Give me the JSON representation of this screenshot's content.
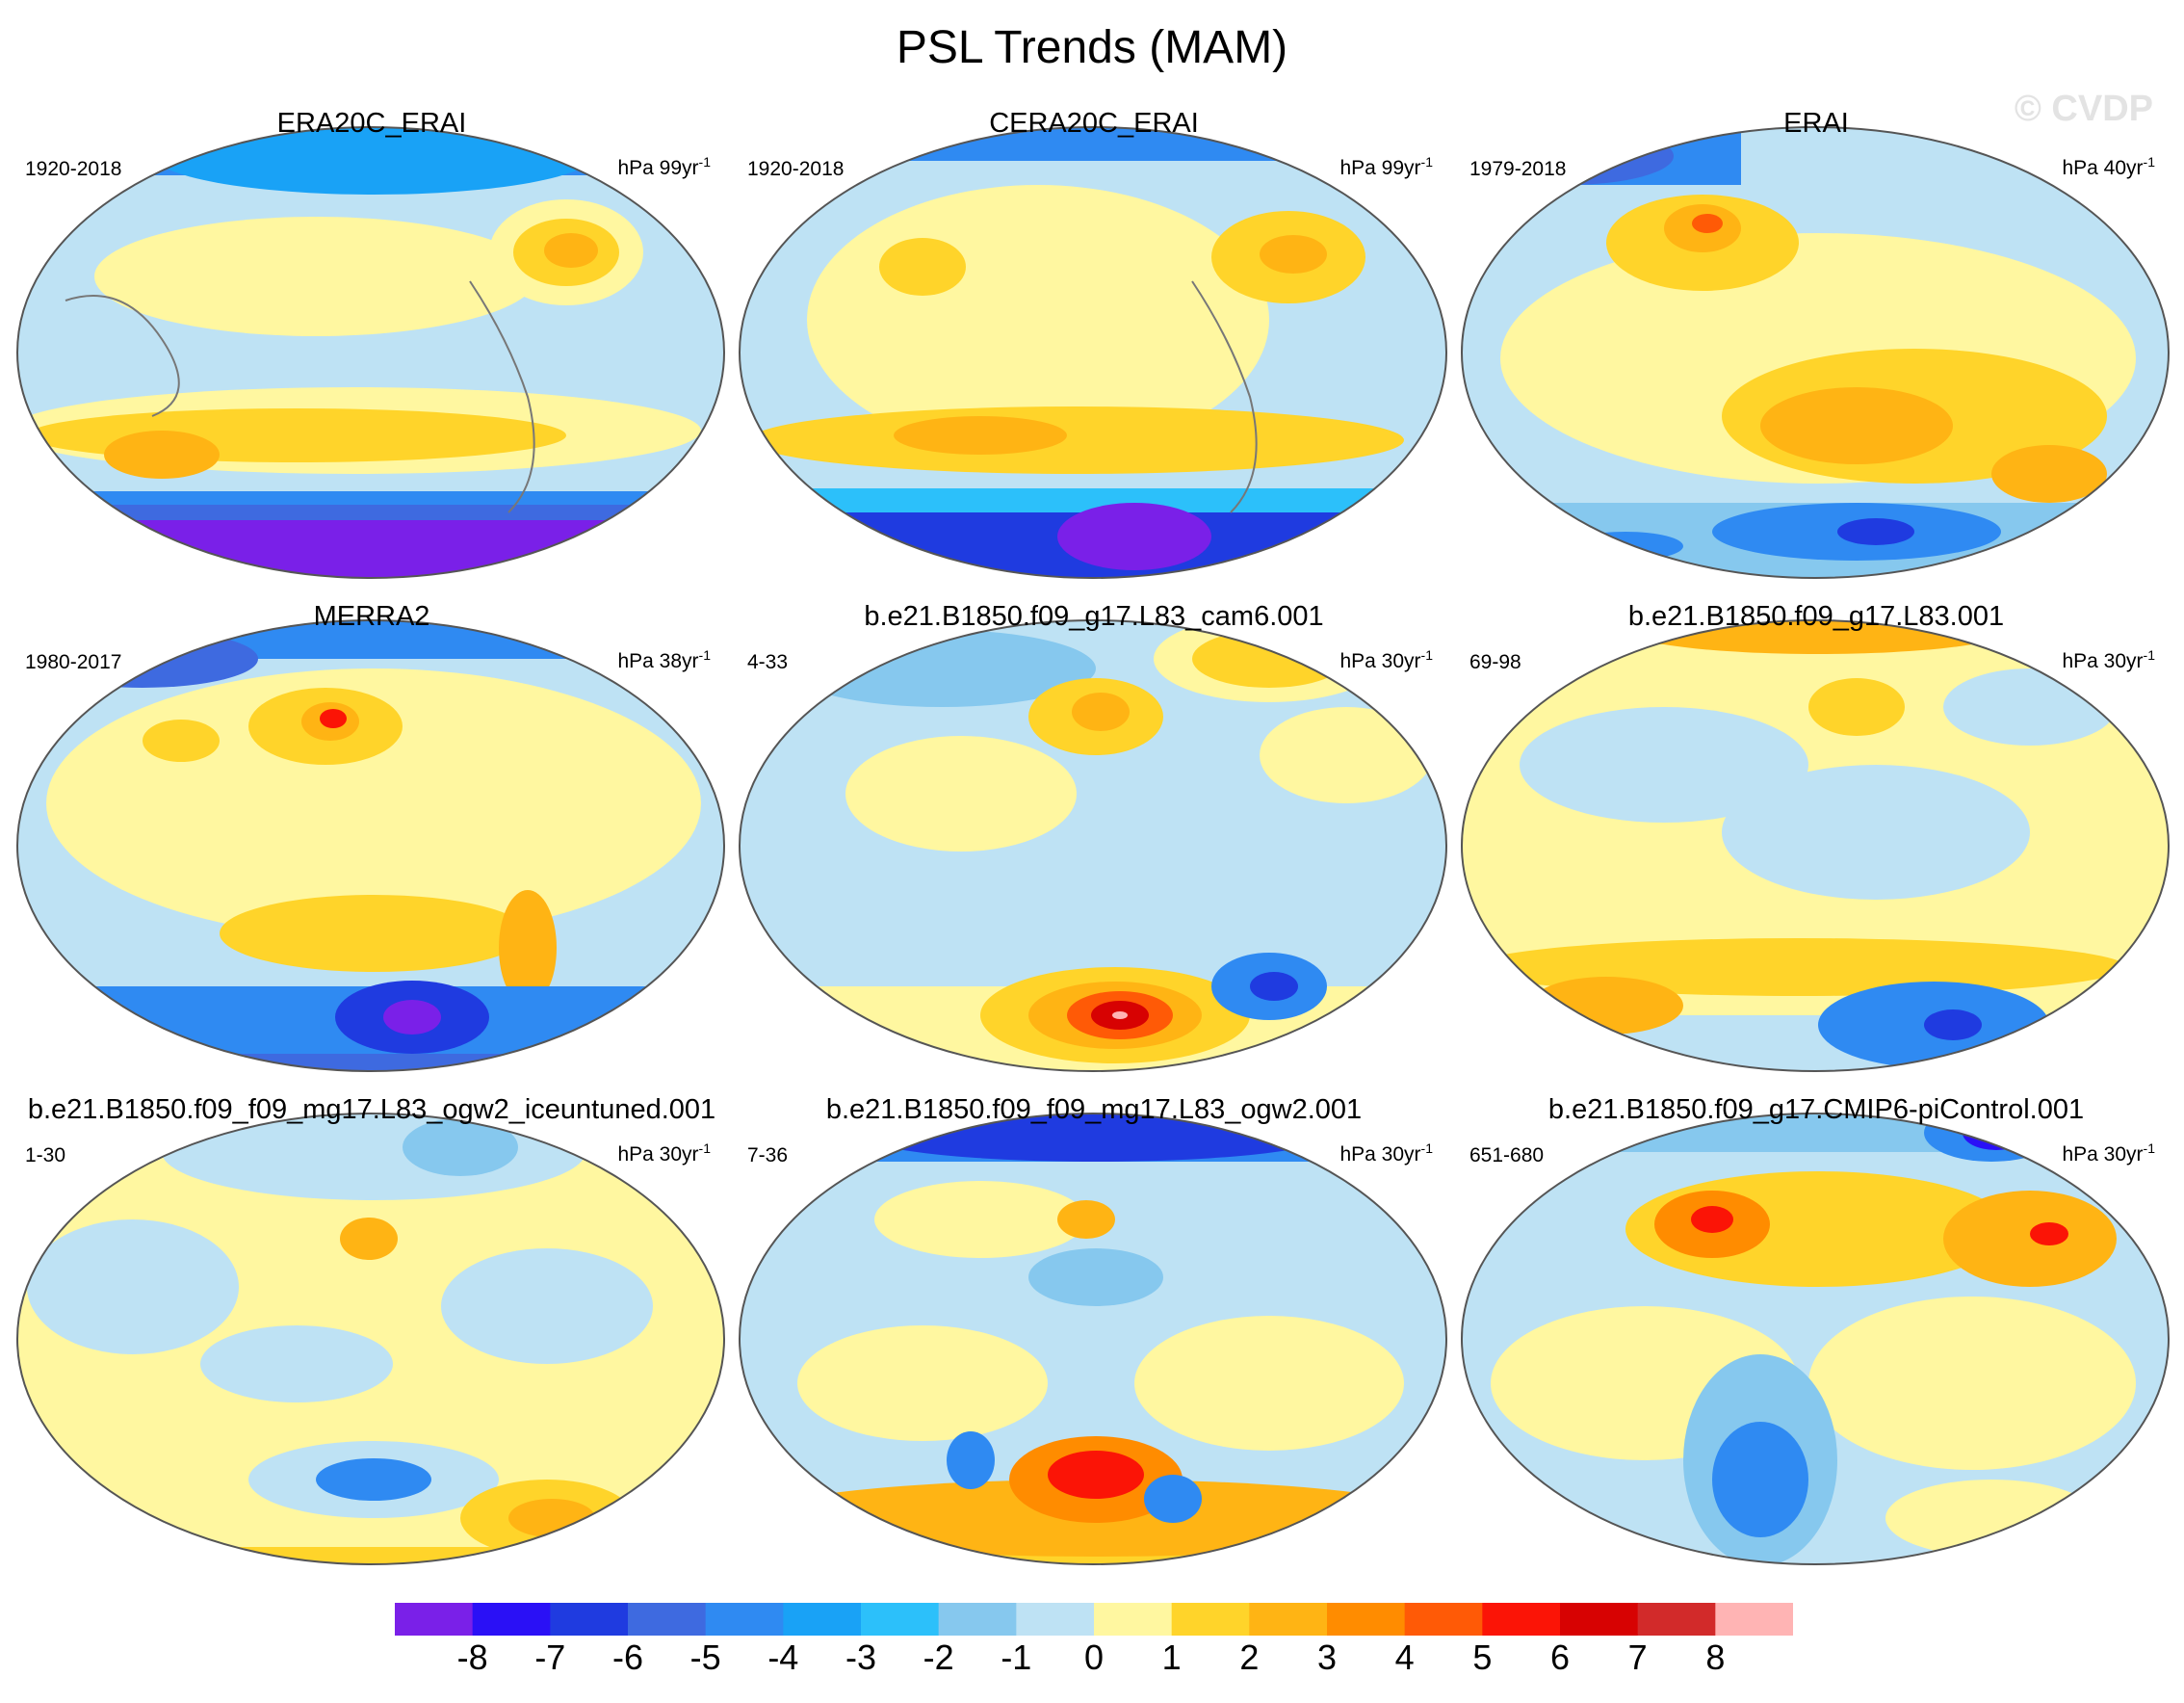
{
  "title": "PSL Trends (MAM)",
  "watermark": "© CVDP",
  "panels": [
    {
      "title": "ERA20C_ERAI",
      "period": "1920-2018",
      "units_base": "hPa 99yr",
      "units_exp": "-1"
    },
    {
      "title": "CERA20C_ERAI",
      "period": "1920-2018",
      "units_base": "hPa 99yr",
      "units_exp": "-1"
    },
    {
      "title": "ERAI",
      "period": "1979-2018",
      "units_base": "hPa 40yr",
      "units_exp": "-1"
    },
    {
      "title": "MERRA2",
      "period": "1980-2017",
      "units_base": "hPa 38yr",
      "units_exp": "-1"
    },
    {
      "title": "b.e21.B1850.f09_g17.L83_cam6.001",
      "period": "4-33",
      "units_base": "hPa 30yr",
      "units_exp": "-1"
    },
    {
      "title": "b.e21.B1850.f09_g17.L83.001",
      "period": "69-98",
      "units_base": "hPa 30yr",
      "units_exp": "-1"
    },
    {
      "title": "b.e21.B1850.f09_f09_mg17.L83_ogw2_iceuntuned.001",
      "period": "1-30",
      "units_base": "hPa 30yr",
      "units_exp": "-1"
    },
    {
      "title": "b.e21.B1850.f09_f09_mg17.L83_ogw2.001",
      "period": "7-36",
      "units_base": "hPa 30yr",
      "units_exp": "-1"
    },
    {
      "title": "b.e21.B1850.f09_g17.CMIP6-piControl.001",
      "period": "651-680",
      "units_base": "hPa 30yr",
      "units_exp": "-1"
    }
  ],
  "colorbar": {
    "labels": [
      "-8",
      "-7",
      "-6",
      "-5",
      "-4",
      "-3",
      "-2",
      "-1",
      "0",
      "1",
      "2",
      "3",
      "4",
      "5",
      "6",
      "7",
      "8"
    ],
    "colors": [
      "#7a20e8",
      "#2a10f6",
      "#1f3be0",
      "#3e6ae0",
      "#2f8af2",
      "#19a2f6",
      "#2cc0fa",
      "#86c8ee",
      "#bee2f4",
      "#fff7a0",
      "#ffd42a",
      "#ffb414",
      "#ff8c00",
      "#ff5a06",
      "#fb1406",
      "#d70202",
      "#d22a2a",
      "#ffb4b4"
    ]
  }
}
